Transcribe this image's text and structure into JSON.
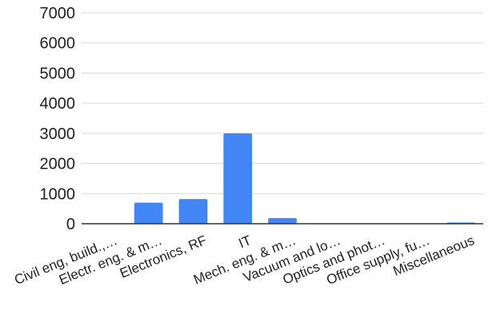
{
  "chart_data": {
    "type": "bar",
    "categories": [
      "Civil eng, build.,…",
      "Electr. eng. & m…",
      "Electronics, RF",
      "IT",
      "Mech. eng. & m…",
      "Vacuum and lo…",
      "Optics and phot…",
      "Office supply, fu…",
      "Miscellaneous"
    ],
    "values": [
      0,
      700,
      820,
      3000,
      190,
      0,
      0,
      0,
      40
    ],
    "y_ticks": [
      "0",
      "1000",
      "2000",
      "3000",
      "4000",
      "5000",
      "6000",
      "7000"
    ],
    "ylim": [
      0,
      7000
    ],
    "grid": true,
    "bar_color": "#4285f4",
    "grid_color": "#d9d9d9",
    "axis_color": "#333333",
    "label_color": "#222222",
    "title": "",
    "xlabel": "",
    "ylabel": ""
  }
}
